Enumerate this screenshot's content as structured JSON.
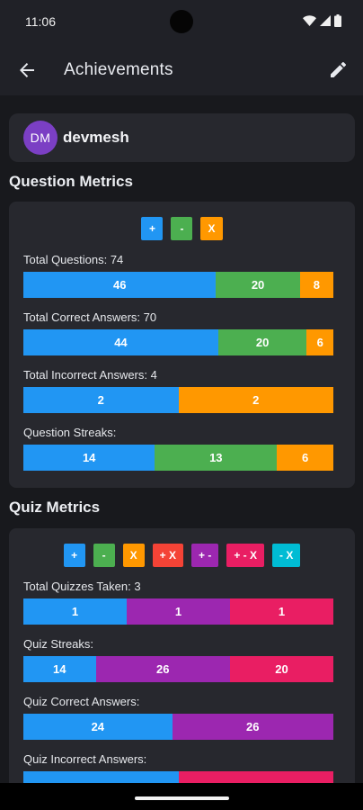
{
  "status": {
    "time": "11:06"
  },
  "appbar": {
    "title": "Achievements"
  },
  "user": {
    "initials": "DM",
    "name": "devmesh"
  },
  "question_metrics": {
    "title": "Question Metrics",
    "legend": [
      {
        "label": "+",
        "color": "#2196f3"
      },
      {
        "label": "-",
        "color": "#4caf50"
      },
      {
        "label": "X",
        "color": "#ff9800"
      }
    ],
    "rows": [
      {
        "label": "Total Questions: 74",
        "segments": [
          {
            "value": "46",
            "color": "#2196f3"
          },
          {
            "value": "20",
            "color": "#4caf50"
          },
          {
            "value": "8",
            "color": "#ff9800"
          }
        ]
      },
      {
        "label": "Total Correct Answers: 70",
        "segments": [
          {
            "value": "44",
            "color": "#2196f3"
          },
          {
            "value": "20",
            "color": "#4caf50"
          },
          {
            "value": "6",
            "color": "#ff9800"
          }
        ]
      },
      {
        "label": "Total Incorrect Answers: 4",
        "segments": [
          {
            "value": "2",
            "color": "#2196f3"
          },
          {
            "value": "2",
            "color": "#ff9800"
          }
        ]
      },
      {
        "label": "Question Streaks:",
        "segments": [
          {
            "value": "14",
            "color": "#2196f3"
          },
          {
            "value": "13",
            "color": "#4caf50"
          },
          {
            "value": "6",
            "color": "#ff9800"
          }
        ]
      }
    ]
  },
  "quiz_metrics": {
    "title": "Quiz Metrics",
    "legend": [
      {
        "label": "+",
        "color": "#2196f3"
      },
      {
        "label": "-",
        "color": "#4caf50"
      },
      {
        "label": "X",
        "color": "#ff9800"
      },
      {
        "label": "+ X",
        "color": "#f44336"
      },
      {
        "label": "+ -",
        "color": "#9c27b0"
      },
      {
        "label": "+ - X",
        "color": "#e91e63"
      },
      {
        "label": "- X",
        "color": "#00bcd4"
      }
    ],
    "rows": [
      {
        "label": "Total Quizzes Taken: 3",
        "segments": [
          {
            "value": "1",
            "color": "#2196f3"
          },
          {
            "value": "1",
            "color": "#9c27b0"
          },
          {
            "value": "1",
            "color": "#e91e63"
          }
        ]
      },
      {
        "label": "Quiz Streaks:",
        "segments": [
          {
            "value": "14",
            "color": "#2196f3"
          },
          {
            "value": "26",
            "color": "#9c27b0"
          },
          {
            "value": "20",
            "color": "#e91e63"
          }
        ]
      },
      {
        "label": "Quiz Correct Answers:",
        "segments": [
          {
            "value": "24",
            "color": "#2196f3"
          },
          {
            "value": "26",
            "color": "#9c27b0"
          }
        ]
      },
      {
        "label": "Quiz Incorrect Answers:",
        "segments": [
          {
            "value": "",
            "color": "#2196f3"
          },
          {
            "value": "",
            "color": "#e91e63"
          }
        ]
      }
    ]
  },
  "icons": {
    "back": "arrow-back-icon",
    "edit": "pencil-icon",
    "wifi": "wifi-icon",
    "signal": "signal-icon",
    "battery": "battery-icon"
  }
}
